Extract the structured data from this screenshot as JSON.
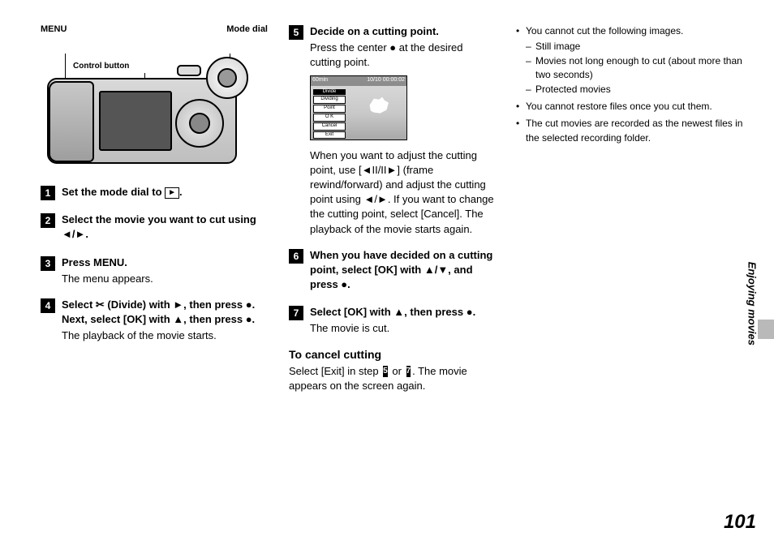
{
  "labels": {
    "menu": "MENU",
    "mode_dial": "Mode dial",
    "control_button": "Control button"
  },
  "steps": {
    "s1": {
      "num": "1",
      "title_a": "Set the mode dial to ",
      "title_b": "."
    },
    "s2": {
      "num": "2",
      "title": "Select the movie you want to cut using ◄/►."
    },
    "s3": {
      "num": "3",
      "title": "Press MENU.",
      "text": "The menu appears."
    },
    "s4": {
      "num": "4",
      "title": "Select ✂ (Divide) with ►, then press ●. Next, select [OK] with ▲, then press ●.",
      "text": "The playback of the movie starts."
    },
    "s5": {
      "num": "5",
      "title": "Decide on a cutting point.",
      "text_a": "Press the center ● at the desired cutting point.",
      "text_b": "When you want to adjust the cutting point, use [◄II/II►] (frame rewind/forward) and adjust the cutting point using ◄/►. If you want to change the cutting point, select [Cancel]. The playback of the movie starts again."
    },
    "s6": {
      "num": "6",
      "title": "When you have decided on a cutting point, select [OK] with ▲/▼, and press ●."
    },
    "s7": {
      "num": "7",
      "title": "Select [OK] with ▲, then press ●.",
      "text": "The movie is cut."
    }
  },
  "thumb": {
    "top_left": "60min",
    "top_right": "10/10  00:00:02",
    "divide": "Divide",
    "dividing": "Dividing",
    "point": "Point",
    "ok": "O K",
    "cancel": "Cancel",
    "exit": "Exit"
  },
  "cancel": {
    "heading": "To cancel cutting",
    "part_a": "Select [Exit] in step ",
    "b5": "5",
    "mid": " or ",
    "b7": "7",
    "part_b": ". The movie appears on the screen again."
  },
  "notes": {
    "n1": "You cannot cut the following images.",
    "n1a": "Still image",
    "n1b": "Movies not long enough to cut (about more than two seconds)",
    "n1c": "Protected movies",
    "n2": "You cannot restore files once you cut them.",
    "n3": "The cut movies are recorded as the newest files in the selected recording folder."
  },
  "side_label": "Enjoying movies",
  "page_number": "101",
  "play_glyph": "►"
}
